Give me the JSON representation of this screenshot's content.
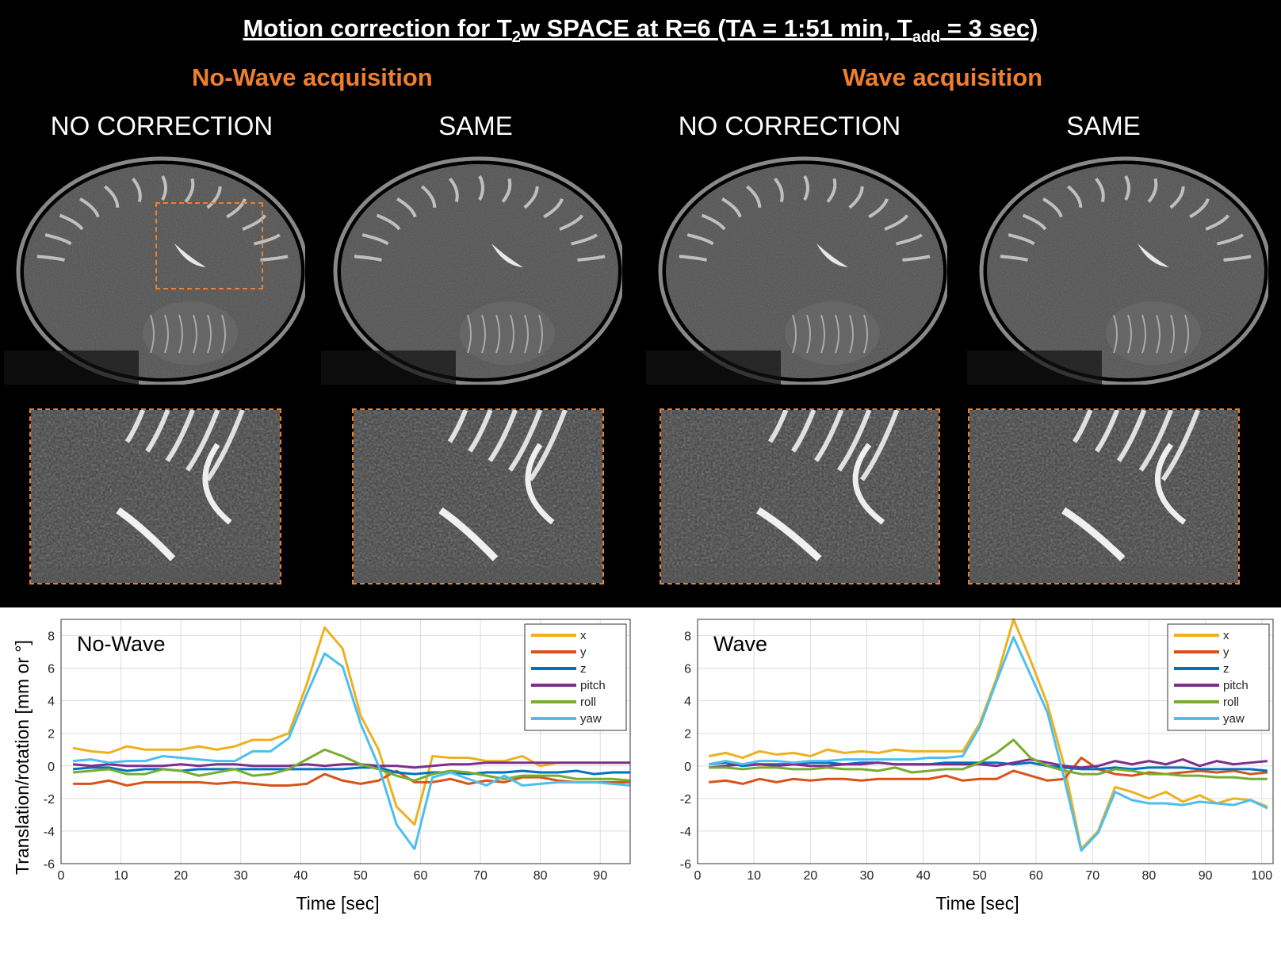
{
  "header": {
    "title_a": "Motion correction for T",
    "title_sub1": "2",
    "title_b": "w SPACE at R=6 (TA = 1:51 min, T",
    "title_sub2": "add",
    "title_c": " = 3 sec)"
  },
  "groups": {
    "nowave": "No-Wave acquisition",
    "wave": "Wave acquisition"
  },
  "columns": [
    "NO CORRECTION",
    "SAME",
    "NO CORRECTION",
    "SAME"
  ],
  "colors": {
    "accent": "#ee7f2d",
    "x": "#edb120",
    "y": "#d95319",
    "z": "#0072bd",
    "pitch": "#7e2f8e",
    "roll": "#77ac30",
    "yaw": "#4dbeee"
  },
  "chart_data": [
    {
      "type": "line",
      "annotation": "No-Wave",
      "xlabel": "Time [sec]",
      "ylabel": "Translation/rotation [mm or °]",
      "xlim": [
        0,
        95
      ],
      "ylim": [
        -6,
        9
      ],
      "xticks": [
        0,
        10,
        20,
        30,
        40,
        50,
        60,
        70,
        80,
        90
      ],
      "yticks": [
        -6,
        -4,
        -2,
        0,
        2,
        4,
        6,
        8
      ],
      "grid": true,
      "legend": "top-right",
      "x": [
        2,
        5,
        8,
        11,
        14,
        17,
        20,
        23,
        26,
        29,
        32,
        35,
        38,
        41,
        44,
        47,
        50,
        53,
        56,
        59,
        62,
        65,
        68,
        71,
        74,
        77,
        80,
        83,
        86,
        89,
        92,
        95
      ],
      "series": [
        {
          "name": "x",
          "values": [
            1.1,
            0.9,
            0.8,
            1.2,
            1.0,
            1.0,
            1.0,
            1.2,
            1.0,
            1.2,
            1.6,
            1.6,
            2.0,
            5.0,
            8.5,
            7.2,
            3.1,
            1.0,
            -2.5,
            -3.6,
            0.6,
            0.5,
            0.5,
            0.3,
            0.3,
            0.6,
            0.0,
            0.2,
            0.2,
            0.2,
            0.2,
            0.2
          ]
        },
        {
          "name": "y",
          "values": [
            -1.1,
            -1.1,
            -0.9,
            -1.2,
            -1.0,
            -1.0,
            -1.0,
            -1.0,
            -1.1,
            -1.0,
            -1.1,
            -1.2,
            -1.2,
            -1.1,
            -0.5,
            -0.9,
            -1.1,
            -0.9,
            -0.3,
            -1.0,
            -1.0,
            -0.8,
            -1.1,
            -0.9,
            -1.0,
            -0.7,
            -0.7,
            -0.9,
            -1.0,
            -1.0,
            -1.0,
            -1.0
          ]
        },
        {
          "name": "z",
          "values": [
            -0.2,
            -0.1,
            -0.1,
            -0.3,
            -0.2,
            -0.2,
            -0.3,
            -0.2,
            -0.2,
            -0.2,
            -0.2,
            -0.2,
            -0.2,
            -0.2,
            -0.2,
            -0.2,
            -0.1,
            -0.1,
            -0.4,
            -0.5,
            -0.4,
            -0.4,
            -0.5,
            -0.4,
            -0.4,
            -0.3,
            -0.4,
            -0.4,
            -0.3,
            -0.5,
            -0.4,
            -0.4
          ]
        },
        {
          "name": "pitch",
          "values": [
            0.1,
            0.0,
            0.1,
            0.0,
            0.0,
            0.0,
            0.1,
            0.0,
            0.1,
            0.1,
            0.0,
            0.0,
            0.0,
            0.1,
            0.0,
            0.1,
            0.1,
            0.0,
            0.0,
            -0.1,
            0.0,
            0.1,
            0.1,
            0.2,
            0.2,
            0.2,
            0.2,
            0.2,
            0.2,
            0.2,
            0.2,
            0.2
          ]
        },
        {
          "name": "roll",
          "values": [
            -0.4,
            -0.3,
            -0.2,
            -0.5,
            -0.5,
            -0.2,
            -0.3,
            -0.6,
            -0.4,
            -0.2,
            -0.6,
            -0.5,
            -0.2,
            0.4,
            1.0,
            0.6,
            0.1,
            -0.2,
            -0.6,
            -0.9,
            -0.5,
            -0.3,
            -0.4,
            -0.6,
            -0.8,
            -0.6,
            -0.6,
            -0.6,
            -0.8,
            -0.8,
            -0.8,
            -0.9
          ]
        },
        {
          "name": "yaw",
          "values": [
            0.3,
            0.4,
            0.2,
            0.3,
            0.3,
            0.6,
            0.5,
            0.4,
            0.3,
            0.3,
            0.9,
            0.9,
            1.7,
            4.4,
            6.9,
            6.1,
            2.6,
            0.0,
            -3.6,
            -5.1,
            -0.7,
            -0.4,
            -0.8,
            -1.2,
            -0.6,
            -1.2,
            -1.1,
            -1.0,
            -1.0,
            -1.0,
            -1.1,
            -1.2
          ]
        }
      ]
    },
    {
      "type": "line",
      "annotation": "Wave",
      "xlabel": "Time [sec]",
      "ylabel": "",
      "xlim": [
        0,
        102
      ],
      "ylim": [
        -6,
        9
      ],
      "xticks": [
        0,
        10,
        20,
        30,
        40,
        50,
        60,
        70,
        80,
        90,
        100
      ],
      "yticks": [
        -6,
        -4,
        -2,
        0,
        2,
        4,
        6,
        8
      ],
      "grid": true,
      "legend": "top-right",
      "x": [
        2,
        5,
        8,
        11,
        14,
        17,
        20,
        23,
        26,
        29,
        32,
        35,
        38,
        41,
        44,
        47,
        50,
        53,
        56,
        59,
        62,
        65,
        68,
        71,
        74,
        77,
        80,
        83,
        86,
        89,
        92,
        95,
        98,
        101
      ],
      "series": [
        {
          "name": "x",
          "values": [
            0.6,
            0.8,
            0.5,
            0.9,
            0.7,
            0.8,
            0.6,
            1.0,
            0.8,
            0.9,
            0.8,
            1.0,
            0.9,
            0.9,
            0.9,
            0.9,
            2.6,
            5.4,
            9.0,
            6.5,
            3.8,
            0.0,
            -5.1,
            -4.0,
            -1.3,
            -1.6,
            -2.0,
            -1.6,
            -2.2,
            -1.8,
            -2.3,
            -2.0,
            -2.1,
            -2.5
          ]
        },
        {
          "name": "y",
          "values": [
            -1.0,
            -0.9,
            -1.1,
            -0.8,
            -1.0,
            -0.8,
            -0.9,
            -0.8,
            -0.8,
            -0.9,
            -0.8,
            -0.8,
            -0.8,
            -0.8,
            -0.6,
            -0.9,
            -0.8,
            -0.8,
            -0.3,
            -0.6,
            -0.9,
            -0.8,
            0.5,
            -0.2,
            -0.5,
            -0.6,
            -0.4,
            -0.5,
            -0.4,
            -0.3,
            -0.4,
            -0.3,
            -0.5,
            -0.4
          ]
        },
        {
          "name": "z",
          "values": [
            0.1,
            0.2,
            0.0,
            0.1,
            0.1,
            0.1,
            0.2,
            0.2,
            0.1,
            0.2,
            0.2,
            0.1,
            0.1,
            0.1,
            0.2,
            0.2,
            0.2,
            0.2,
            0.1,
            0.2,
            0.0,
            -0.1,
            -0.2,
            -0.2,
            -0.1,
            -0.2,
            -0.1,
            -0.1,
            -0.1,
            -0.2,
            -0.2,
            -0.2,
            -0.2,
            -0.3
          ]
        },
        {
          "name": "pitch",
          "values": [
            -0.1,
            0.0,
            0.1,
            0.1,
            0.0,
            0.1,
            0.0,
            0.0,
            0.1,
            0.1,
            0.2,
            0.1,
            0.1,
            0.1,
            0.1,
            0.1,
            0.1,
            0.0,
            0.2,
            0.4,
            0.2,
            0.0,
            -0.1,
            0.0,
            0.3,
            0.1,
            0.3,
            0.1,
            0.4,
            0.0,
            0.3,
            0.1,
            0.2,
            0.3
          ]
        },
        {
          "name": "roll",
          "values": [
            -0.1,
            -0.1,
            -0.2,
            -0.1,
            -0.1,
            -0.2,
            -0.2,
            -0.1,
            -0.2,
            -0.2,
            -0.3,
            -0.1,
            -0.4,
            -0.3,
            -0.2,
            -0.2,
            0.2,
            0.8,
            1.6,
            0.5,
            0.0,
            -0.3,
            -0.5,
            -0.5,
            -0.2,
            -0.3,
            -0.5,
            -0.5,
            -0.6,
            -0.6,
            -0.7,
            -0.7,
            -0.8,
            -0.8
          ]
        },
        {
          "name": "yaw",
          "values": [
            0.1,
            0.3,
            0.1,
            0.3,
            0.3,
            0.2,
            0.3,
            0.3,
            0.4,
            0.4,
            0.4,
            0.4,
            0.4,
            0.5,
            0.5,
            0.6,
            2.4,
            5.2,
            7.9,
            5.6,
            3.3,
            -0.8,
            -5.2,
            -4.1,
            -1.6,
            -2.1,
            -2.3,
            -2.3,
            -2.4,
            -2.2,
            -2.3,
            -2.4,
            -2.1,
            -2.6
          ]
        }
      ]
    }
  ]
}
